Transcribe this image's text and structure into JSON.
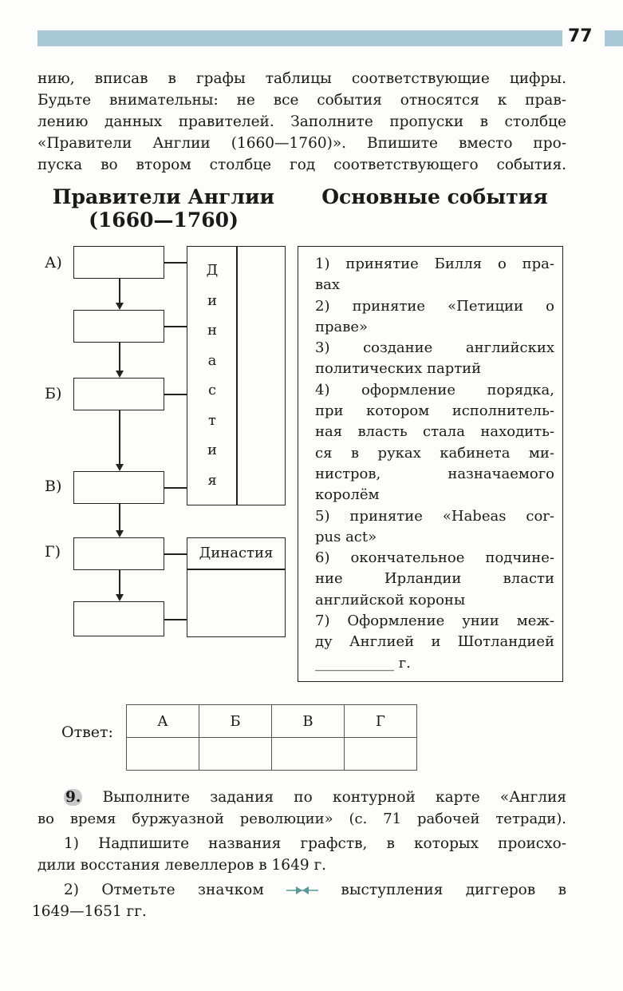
{
  "page_number": "77",
  "intro_lines": [
    "нию, вписав в графы таблицы соответствующие цифры.",
    "Будьте внимательны: не все события относятся к прав-",
    "лению данных правителей. Заполните пропуски в столбце",
    "«Правители Англии (1660—1760)». Впишите вместо про-",
    "пуска во втором столбце год соответствующего события."
  ],
  "left_heading": {
    "line1": "Правители Англии",
    "line2": "(1660—1760)"
  },
  "right_heading": "Основные события",
  "ruler_labels": [
    "А)",
    "Б)",
    "В)",
    "Г)"
  ],
  "dynasty_vertical": [
    "Д",
    "и",
    "н",
    "а",
    "с",
    "т",
    "и",
    "я"
  ],
  "dynasty_label": "Династия",
  "events_lines": [
    "1) принятие Билля о пра-",
    "вах",
    "2) принятие «Петиции о",
    "праве»",
    "3) создание английских",
    "политических партий",
    "4) оформление порядка,",
    "при котором исполнитель-",
    "ная власть стала находить-",
    "ся в руках кабинета ми-",
    "нистров, назначаемого",
    "королём",
    "5) принятие «Habeas cor-",
    "pus act»",
    "6) окончательное подчине-",
    "ние Ирландии власти",
    "английской короны",
    "7) Оформление унии меж-",
    "ду Англией и Шотландией",
    "___________ г."
  ],
  "answer": {
    "label": "Ответ:",
    "headers": [
      "А",
      "Б",
      "В",
      "Г"
    ],
    "values": [
      "",
      "",
      "",
      ""
    ]
  },
  "task9": {
    "number": "9.",
    "line1": "Выполните задания по контурной карте «Англия",
    "line2": "во время буржуазной революции» (с. 71 рабочей тетради).",
    "item1_line1": "1) Надпишите названия графств, в которых происхо-",
    "item1_line2": "дили восстания левеллеров в 1649 г.",
    "item2_before": "2) Отметьте значком",
    "item2_after": "выступления диггеров в",
    "item2_line2": "1649—1651 гг.",
    "icon": "diggers-marker-icon",
    "icon_color": "#5a9a96"
  },
  "colors": {
    "header_bar": "#a9c8d6"
  }
}
